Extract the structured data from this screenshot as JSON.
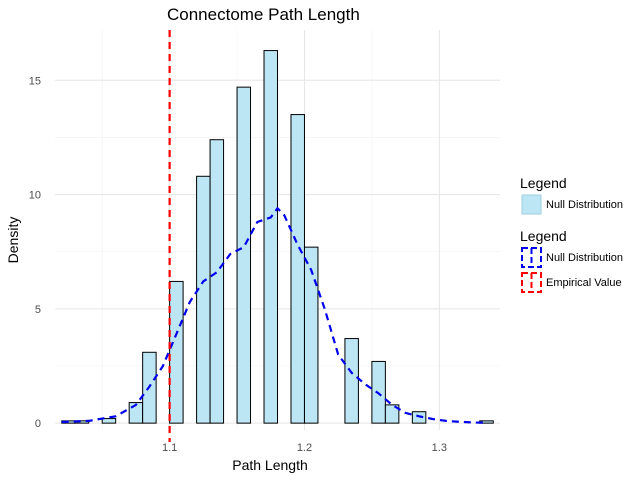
{
  "chart_data": {
    "type": "bar",
    "title": "Connectome Path Length",
    "xlabel": "Path Length",
    "ylabel": "Density",
    "xlim": [
      1.015,
      1.345
    ],
    "ylim": [
      -0.3,
      17.2
    ],
    "x_ticks": [
      1.1,
      1.2,
      1.3
    ],
    "y_ticks": [
      0,
      5,
      10,
      15
    ],
    "grid": true,
    "bin_width": 0.01,
    "histogram": {
      "name": "Null Distribution",
      "fill": "#bde6f5",
      "stroke": "#000000",
      "bins": [
        {
          "center": 1.025,
          "value": 0.1
        },
        {
          "center": 1.035,
          "value": 0.1
        },
        {
          "center": 1.055,
          "value": 0.2
        },
        {
          "center": 1.075,
          "value": 0.9
        },
        {
          "center": 1.085,
          "value": 3.1
        },
        {
          "center": 1.105,
          "value": 6.2
        },
        {
          "center": 1.125,
          "value": 10.8
        },
        {
          "center": 1.135,
          "value": 12.4
        },
        {
          "center": 1.155,
          "value": 14.7
        },
        {
          "center": 1.175,
          "value": 16.3
        },
        {
          "center": 1.195,
          "value": 13.5
        },
        {
          "center": 1.205,
          "value": 7.7
        },
        {
          "center": 1.235,
          "value": 3.7
        },
        {
          "center": 1.255,
          "value": 2.7
        },
        {
          "center": 1.265,
          "value": 0.8
        },
        {
          "center": 1.285,
          "value": 0.5
        },
        {
          "center": 1.335,
          "value": 0.1
        }
      ]
    },
    "density_curve": {
      "name": "Null Distribution",
      "color": "#0000ee",
      "x": [
        1.02,
        1.04,
        1.06,
        1.075,
        1.085,
        1.095,
        1.105,
        1.115,
        1.125,
        1.135,
        1.145,
        1.155,
        1.165,
        1.175,
        1.18,
        1.185,
        1.195,
        1.205,
        1.215,
        1.225,
        1.235,
        1.245,
        1.255,
        1.265,
        1.275,
        1.285,
        1.295,
        1.305,
        1.315,
        1.325,
        1.335
      ],
      "y": [
        0.05,
        0.1,
        0.3,
        0.8,
        1.6,
        2.5,
        3.9,
        5.3,
        6.2,
        6.6,
        7.4,
        7.7,
        8.8,
        9.0,
        9.4,
        9.1,
        7.8,
        6.7,
        5.0,
        3.0,
        2.2,
        1.7,
        1.3,
        0.8,
        0.45,
        0.3,
        0.18,
        0.1,
        0.06,
        0.03,
        0.02
      ]
    },
    "vline": {
      "name": "Empirical Value",
      "x": 1.1,
      "color": "#ff0000"
    },
    "legends": [
      {
        "title": "Legend",
        "entries": [
          {
            "label": "Null Distribution",
            "kind": "fill",
            "fill": "#bde6f5",
            "stroke": "#9ccfe0"
          }
        ]
      },
      {
        "title": "Legend",
        "entries": [
          {
            "label": "Null Distribution",
            "kind": "dashed",
            "color": "#0000ee"
          },
          {
            "label": "Empirical Value",
            "kind": "dashed",
            "color": "#ff0000"
          }
        ]
      }
    ],
    "legend_position": "right"
  }
}
